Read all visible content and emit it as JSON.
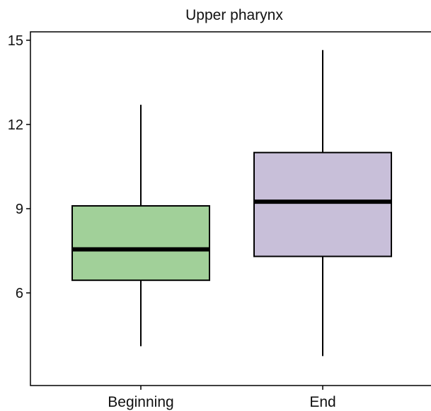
{
  "chart_data": {
    "type": "boxplot",
    "title": "Upper pharynx",
    "xlabel": "",
    "ylabel": "",
    "ylim": [
      2.7,
      15.3
    ],
    "yticks": [
      6,
      9,
      12,
      15
    ],
    "grid": false,
    "categories": [
      "Beginning",
      "End"
    ],
    "boxes": [
      {
        "category": "Beginning",
        "whisker_low": 4.1,
        "q1": 6.45,
        "median": 7.55,
        "q3": 9.1,
        "whisker_high": 12.7,
        "color": "#a1d099"
      },
      {
        "category": "End",
        "whisker_low": 3.75,
        "q1": 7.3,
        "median": 9.25,
        "q3": 11.0,
        "whisker_high": 14.65,
        "color": "#c8bfd9"
      }
    ]
  }
}
